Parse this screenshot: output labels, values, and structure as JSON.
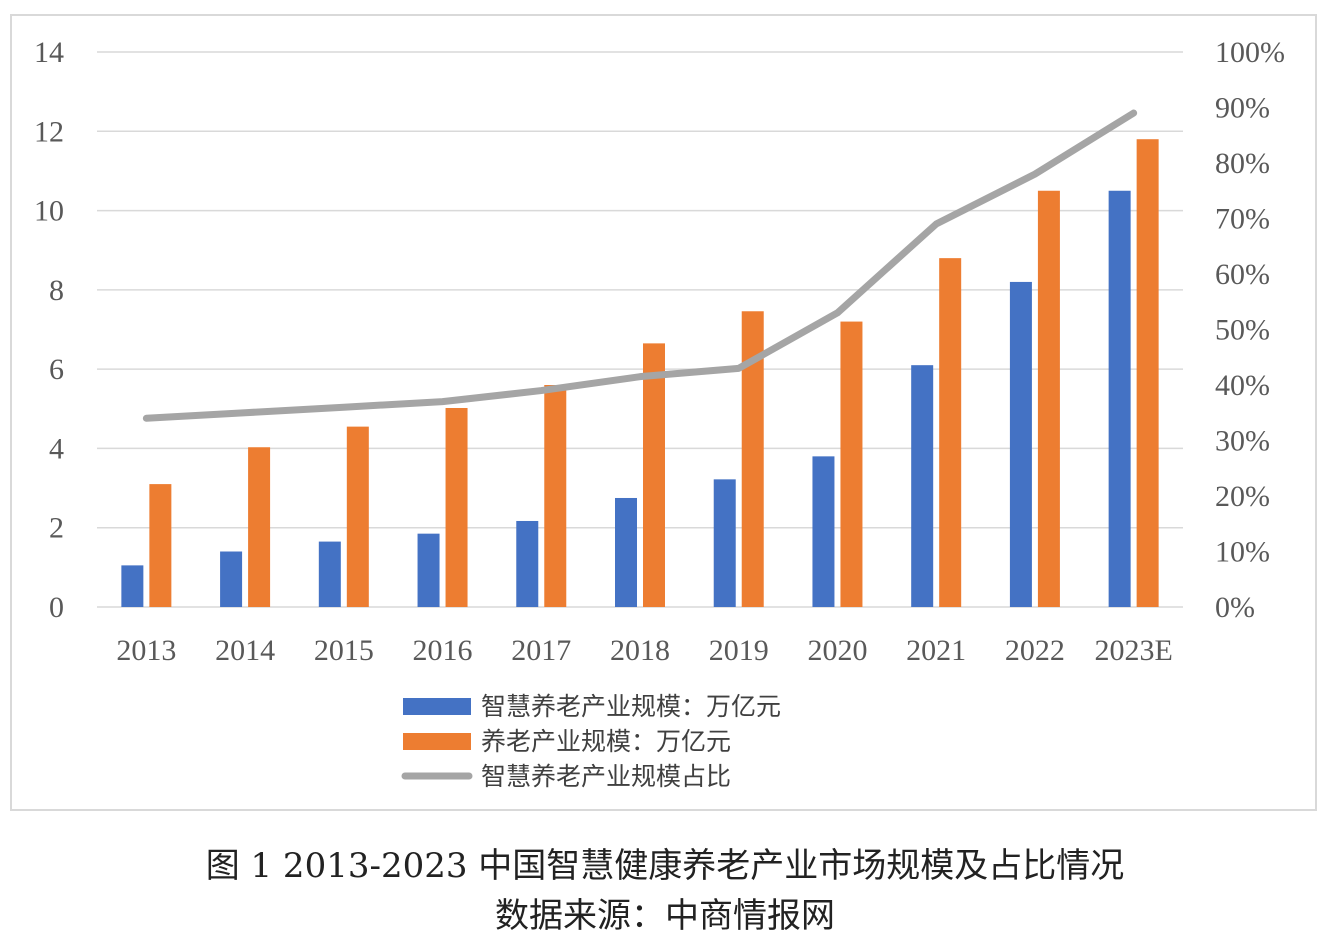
{
  "caption": {
    "title": "图 1 2013-2023 中国智慧健康养老产业市场规模及占比情况",
    "source": "数据来源：中商情报网"
  },
  "chart_data": {
    "type": "bar",
    "categories": [
      "2013",
      "2014",
      "2015",
      "2016",
      "2017",
      "2018",
      "2019",
      "2020",
      "2021",
      "2022",
      "2023E"
    ],
    "series": [
      {
        "name": "智慧养老产业规模：万亿元",
        "type": "bar",
        "axis": "left",
        "color": "#4472c4",
        "values": [
          1.05,
          1.4,
          1.65,
          1.85,
          2.17,
          2.75,
          3.22,
          3.8,
          6.1,
          8.2,
          10.5
        ]
      },
      {
        "name": "养老产业规模：万亿元",
        "type": "bar",
        "axis": "left",
        "color": "#ed7d31",
        "values": [
          3.1,
          4.03,
          4.55,
          5.02,
          5.6,
          6.65,
          7.46,
          7.2,
          8.8,
          10.5,
          11.8
        ]
      },
      {
        "name": "智慧养老产业规模占比",
        "type": "line",
        "axis": "right",
        "color": "#a5a5a5",
        "values": [
          0.34,
          0.35,
          0.36,
          0.37,
          0.39,
          0.415,
          0.43,
          0.53,
          0.69,
          0.78,
          0.89
        ]
      }
    ],
    "y_left": {
      "min": 0,
      "max": 14,
      "ticks": [
        "0",
        "2",
        "4",
        "6",
        "8",
        "10",
        "12",
        "14"
      ]
    },
    "y_right": {
      "min": 0,
      "max": 1,
      "ticks": [
        "0%",
        "10%",
        "20%",
        "30%",
        "40%",
        "50%",
        "60%",
        "70%",
        "80%",
        "90%",
        "100%"
      ]
    },
    "grid": true,
    "legend_position": "bottom"
  }
}
